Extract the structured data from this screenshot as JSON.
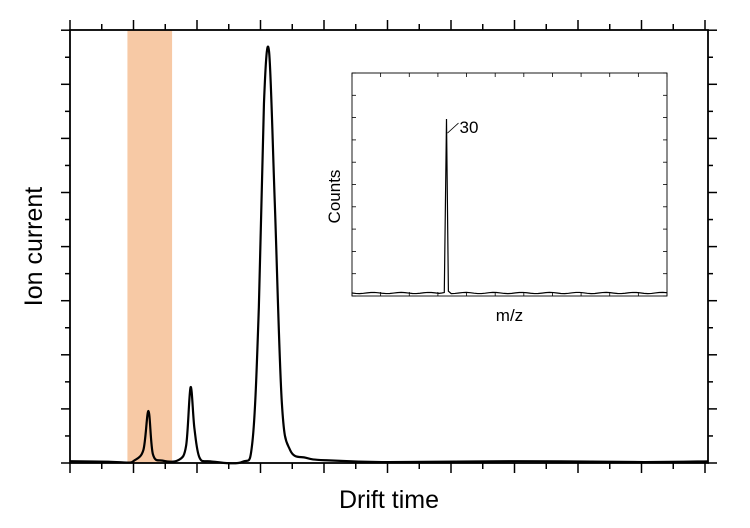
{
  "chart_data": [
    {
      "type": "line",
      "xlabel": "Drift time",
      "ylabel": "Ion current",
      "xlim": [
        0,
        100
      ],
      "ylim": [
        0,
        100
      ],
      "show_tick_labels": false,
      "grid": false,
      "highlight_band": {
        "x_range": [
          9,
          16
        ],
        "color": "#f7c9a5"
      },
      "series": [
        {
          "color": "#000000",
          "points": [
            [
              0,
              0.4
            ],
            [
              6,
              0.3
            ],
            [
              9,
              0.2
            ],
            [
              10,
              0.5
            ],
            [
              11.5,
              3
            ],
            [
              12.3,
              12
            ],
            [
              13,
              2
            ],
            [
              14.5,
              0.6
            ],
            [
              17,
              0.6
            ],
            [
              18.2,
              4
            ],
            [
              18.9,
              17.5
            ],
            [
              19.5,
              8
            ],
            [
              20.3,
              1.2
            ],
            [
              22,
              0.3
            ],
            [
              27,
              0.3
            ],
            [
              28.6,
              5
            ],
            [
              29.6,
              36
            ],
            [
              30.4,
              83
            ],
            [
              31.2,
              95
            ],
            [
              32.1,
              60
            ],
            [
              33.2,
              14
            ],
            [
              34.5,
              3
            ],
            [
              37,
              1.2
            ],
            [
              40,
              0.6
            ],
            [
              50,
              0.2
            ],
            [
              70,
              0.3
            ],
            [
              90,
              0.2
            ],
            [
              100,
              0.3
            ]
          ]
        }
      ]
    },
    {
      "type": "line",
      "xlabel": "m/z",
      "ylabel": "Counts",
      "show_tick_labels": false,
      "grid": false,
      "annotations": [
        {
          "text": "30",
          "x": 30
        }
      ],
      "series": [
        {
          "color": "#000000",
          "points": [
            [
              0,
              0
            ],
            [
              28.5,
              0
            ],
            [
              29.3,
              0.2
            ],
            [
              30,
              78
            ],
            [
              30.6,
              0.8
            ],
            [
              31.5,
              0
            ],
            [
              100,
              0
            ]
          ]
        }
      ]
    }
  ]
}
